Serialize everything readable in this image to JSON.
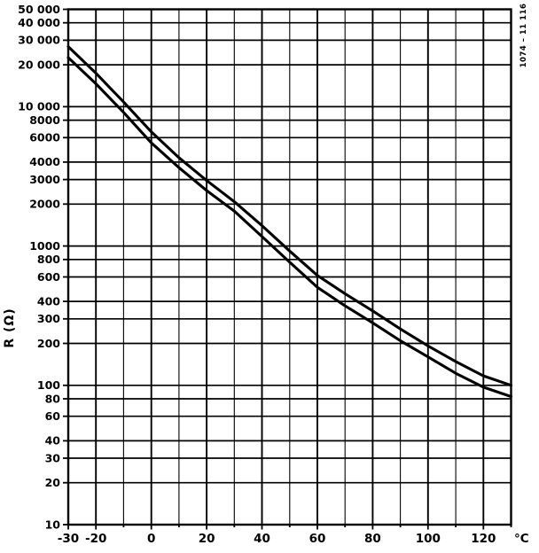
{
  "figure_code": "1074 – 11 116",
  "chart_data": {
    "type": "line",
    "title": "",
    "y_axis_title": "R (Ω)",
    "x_axis_unit": "°C",
    "y_scale": "log",
    "x_scale": "linear",
    "grid": "on",
    "legend": "none",
    "x_range": [
      -30,
      130
    ],
    "y_range": [
      10,
      50000
    ],
    "x_gridline_step": 10,
    "x_major_gridline_step": 20,
    "y_gridlines": [
      10,
      20,
      30,
      40,
      60,
      80,
      100,
      200,
      300,
      400,
      600,
      800,
      1000,
      2000,
      3000,
      4000,
      6000,
      8000,
      10000,
      20000,
      30000,
      40000,
      50000
    ],
    "y_tick_labels": [
      {
        "value": 50000,
        "label": "50 000"
      },
      {
        "value": 40000,
        "label": "40 000"
      },
      {
        "value": 30000,
        "label": "30 000"
      },
      {
        "value": 20000,
        "label": "20 000"
      },
      {
        "value": 10000,
        "label": "10 000"
      },
      {
        "value": 8000,
        "label": "8000"
      },
      {
        "value": 6000,
        "label": "6000"
      },
      {
        "value": 4000,
        "label": "4000"
      },
      {
        "value": 3000,
        "label": "3000"
      },
      {
        "value": 2000,
        "label": "2000"
      },
      {
        "value": 1000,
        "label": "1000"
      },
      {
        "value": 800,
        "label": "800"
      },
      {
        "value": 600,
        "label": "600"
      },
      {
        "value": 400,
        "label": "400"
      },
      {
        "value": 300,
        "label": "300"
      },
      {
        "value": 200,
        "label": "200"
      },
      {
        "value": 100,
        "label": "100"
      },
      {
        "value": 80,
        "label": "80"
      },
      {
        "value": 60,
        "label": "60"
      },
      {
        "value": 40,
        "label": "40"
      },
      {
        "value": 30,
        "label": "30"
      },
      {
        "value": 20,
        "label": "20"
      },
      {
        "value": 10,
        "label": "10"
      }
    ],
    "x_tick_labels": [
      {
        "value": -30,
        "label": "-30"
      },
      {
        "value": -20,
        "label": "-20"
      },
      {
        "value": 0,
        "label": "0"
      },
      {
        "value": 20,
        "label": "20"
      },
      {
        "value": 40,
        "label": "40"
      },
      {
        "value": 60,
        "label": "60"
      },
      {
        "value": 80,
        "label": "80"
      },
      {
        "value": 100,
        "label": "100"
      },
      {
        "value": 120,
        "label": "120"
      }
    ],
    "x": [
      -30,
      -20,
      -10,
      0,
      10,
      20,
      30,
      40,
      50,
      60,
      70,
      80,
      90,
      100,
      110,
      120,
      130
    ],
    "series": [
      {
        "name": "upper-tolerance-curve",
        "values": [
          27000,
          17400,
          10800,
          6600,
          4300,
          2950,
          2080,
          1400,
          920,
          615,
          455,
          342,
          254,
          192,
          148,
          117,
          100
        ]
      },
      {
        "name": "lower-tolerance-curve",
        "values": [
          22500,
          14600,
          9100,
          5500,
          3650,
          2500,
          1780,
          1170,
          765,
          505,
          372,
          281,
          209,
          160,
          122,
          97,
          83
        ]
      }
    ],
    "line_color": "#000000",
    "background_color": "#ffffff"
  }
}
